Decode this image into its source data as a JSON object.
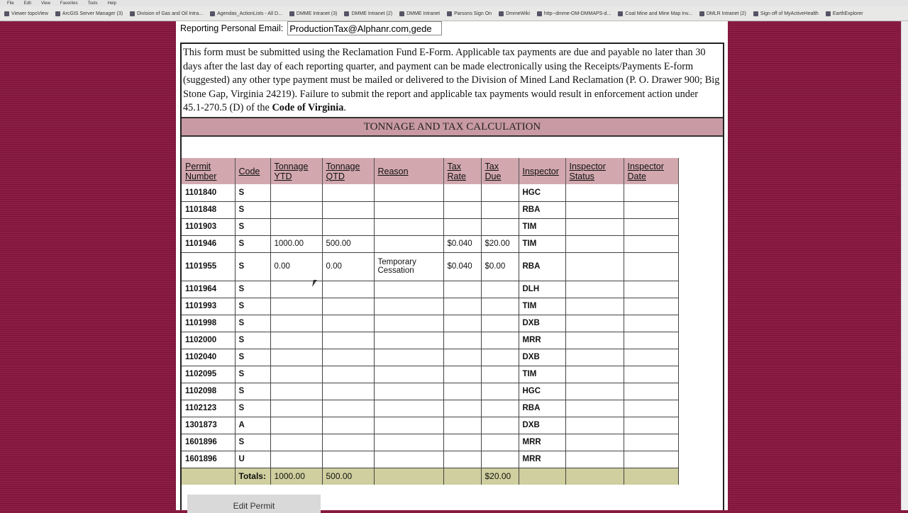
{
  "browser": {
    "menu": [
      "File",
      "Edit",
      "View",
      "Favorites",
      "Tools",
      "Help"
    ],
    "bookmarks": [
      "Viewer topoView",
      "ArcGIS Server Manager (3)",
      "Division of Gas and Oil Intra...",
      "Agendas_ActionLists - All D...",
      "DMME Intranet (3)",
      "DMME Intranet (2)",
      "DMME Intranet",
      "Parsons Sign On",
      "DmmeWiki",
      "http--dmme-OM-DMMAPS-d...",
      "Coal Mine and Mine Map Inv...",
      "DMLR Intranet (2)",
      "Sign off of MyActiveHealth",
      "EarthExplorer"
    ]
  },
  "email": {
    "label": "Reporting Personal Email:",
    "value": "ProductionTax@Alphanr.com,gede"
  },
  "notice": {
    "text": "This form must be submitted using the Reclamation Fund E-Form.  Applicable tax payments are due and payable no later than 30 days after the last day of each reporting quarter, and payment can be made electronically using the Receipts/Payments E-form (suggested) any other type payment must be mailed or delivered to the Division of Mined Land Reclamation (P. O. Drawer 900; Big Stone Gap, Virginia 24219). Failure to submit the report and applicable tax payments would result in enforcement action under 45.1-270.5 (D) of the ",
    "bold": "Code of Virginia",
    "end": "."
  },
  "section_title": "TONNAGE AND TAX CALCULATION",
  "table": {
    "headers": [
      "Permit Number",
      "Code",
      "Tonnage YTD",
      "Tonnage QTD",
      "Reason",
      "Tax Rate",
      "Tax Due",
      "Inspector",
      "Inspector Status",
      "Inspector Date"
    ],
    "rows": [
      [
        "1101840",
        "S",
        "",
        "",
        "",
        "",
        "",
        "HGC",
        "",
        ""
      ],
      [
        "1101848",
        "S",
        "",
        "",
        "",
        "",
        "",
        "RBA",
        "",
        ""
      ],
      [
        "1101903",
        "S",
        "",
        "",
        "",
        "",
        "",
        "TIM",
        "",
        ""
      ],
      [
        "1101946",
        "S",
        "1000.00",
        "500.00",
        "",
        "$0.040",
        "$20.00",
        "TIM",
        "",
        ""
      ],
      [
        "1101955",
        "S",
        "0.00",
        "0.00",
        "Temporary Cessation",
        "$0.040",
        "$0.00",
        "RBA",
        "",
        ""
      ],
      [
        "1101964",
        "S",
        "",
        "",
        "",
        "",
        "",
        "DLH",
        "",
        ""
      ],
      [
        "1101993",
        "S",
        "",
        "",
        "",
        "",
        "",
        "TIM",
        "",
        ""
      ],
      [
        "1101998",
        "S",
        "",
        "",
        "",
        "",
        "",
        "DXB",
        "",
        ""
      ],
      [
        "1102000",
        "S",
        "",
        "",
        "",
        "",
        "",
        "MRR",
        "",
        ""
      ],
      [
        "1102040",
        "S",
        "",
        "",
        "",
        "",
        "",
        "DXB",
        "",
        ""
      ],
      [
        "1102095",
        "S",
        "",
        "",
        "",
        "",
        "",
        "TIM",
        "",
        ""
      ],
      [
        "1102098",
        "S",
        "",
        "",
        "",
        "",
        "",
        "HGC",
        "",
        ""
      ],
      [
        "1102123",
        "S",
        "",
        "",
        "",
        "",
        "",
        "RBA",
        "",
        ""
      ],
      [
        "1301873",
        "A",
        "",
        "",
        "",
        "",
        "",
        "DXB",
        "",
        ""
      ],
      [
        "1601896",
        "S",
        "",
        "",
        "",
        "",
        "",
        "MRR",
        "",
        ""
      ],
      [
        "1601896",
        "U",
        "",
        "",
        "",
        "",
        "",
        "MRR",
        "",
        ""
      ]
    ],
    "totals": [
      "",
      "Totals:",
      "1000.00",
      "500.00",
      "",
      "",
      "$20.00",
      "",
      "",
      ""
    ]
  },
  "edit_button": "Edit Permit"
}
